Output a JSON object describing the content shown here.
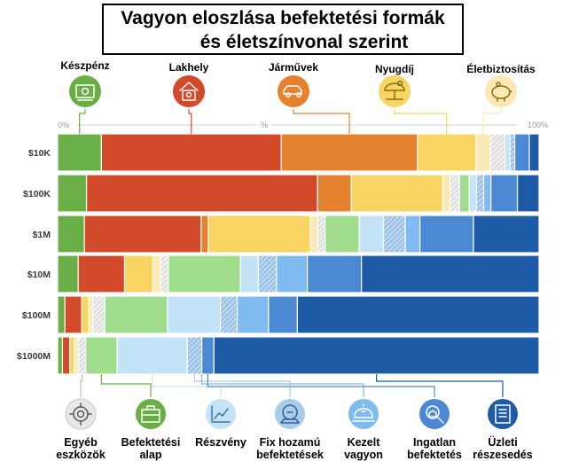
{
  "title": {
    "line1": "Vagyon eloszlása befektetési formák",
    "line2": "és életszínvonal szerint"
  },
  "axis": {
    "left": "0%",
    "mid": "%",
    "right": "100%"
  },
  "colors": {
    "cash": "#6aaf45",
    "housing": "#d24a2a",
    "vehicles": "#e6822f",
    "pension": "#f8d462",
    "life_insurance": "#fbe8b2",
    "other": "#e2e2e2",
    "funds": "#9fdc8c",
    "equities": "#c5e3f7",
    "fixed_income": "#a8cde8",
    "managed": "#7fbbf0",
    "real_estate": "#4c89d4",
    "business": "#1e5ba6"
  },
  "chart_data": {
    "type": "bar",
    "orientation": "horizontal",
    "stacked": "100%",
    "title": "Vagyon eloszlása befektetési formák és életszínvonal szerint",
    "xlim": [
      0,
      100
    ],
    "categories": [
      "$10K",
      "$100K",
      "$1M",
      "$10M",
      "$100M",
      "$1000M"
    ],
    "series": [
      {
        "name": "Készpénz",
        "icon": "cash-icon",
        "values": [
          9,
          6,
          5.5,
          4,
          1.5,
          1
        ]
      },
      {
        "name": "Lakhely",
        "icon": "house-icon",
        "values": [
          37,
          48,
          24,
          9,
          3.5,
          1.5
        ]
      },
      {
        "name": "Járművek",
        "icon": "car-icon",
        "values": [
          28,
          7,
          1.5,
          0,
          0,
          0
        ]
      },
      {
        "name": "Nyugdíj",
        "icon": "pension-icon",
        "values": [
          12,
          19,
          21,
          5.5,
          1.5,
          1
        ]
      },
      {
        "name": "Életbiztosítás",
        "icon": "piggy-bank-icon",
        "values": [
          3,
          1.5,
          1.5,
          1.5,
          0.8,
          0.8
        ]
      },
      {
        "name": "Egyéb eszközök",
        "icon": "gear-icon",
        "values": [
          3,
          2,
          1.5,
          1.5,
          2.5,
          1.5
        ]
      },
      {
        "name": "Befektetési alap",
        "icon": "briefcase-icon",
        "values": [
          0,
          2,
          7,
          14,
          13,
          6.5
        ]
      },
      {
        "name": "Részvény",
        "icon": "stock-chart-icon",
        "values": [
          1,
          1.5,
          5,
          3.5,
          11,
          14.5
        ]
      },
      {
        "name": "Fix hozamú befektetések",
        "icon": "fixed-income-icon",
        "values": [
          1,
          1.5,
          4.5,
          3.5,
          3.5,
          3
        ]
      },
      {
        "name": "Kezelt vagyon",
        "icon": "managed-wealth-icon",
        "values": [
          0,
          1.5,
          3,
          6,
          6.5,
          0
        ]
      },
      {
        "name": "Ingatlan befektetés",
        "icon": "magnifier-house-icon",
        "values": [
          3,
          5.5,
          11,
          10.5,
          6,
          2.5
        ]
      },
      {
        "name": "Üzleti részesedés",
        "icon": "business-share-icon",
        "values": [
          2,
          4.5,
          13.5,
          34.5,
          50.2,
          67.2
        ]
      }
    ],
    "top_legend": [
      "Készpénz",
      "Lakhely",
      "Járművek",
      "Nyugdíj",
      "Életbiztosítás"
    ],
    "bottom_legend": [
      "Egyéb eszközök",
      "Befektetési alap",
      "Részvény",
      "Fix hozamú befektetések",
      "Kezelt vagyon",
      "Ingatlan befektetés",
      "Üzleti részesedés"
    ],
    "legend_lines": {
      "cash": [
        "Kész",
        "pénz"
      ],
      "house": [
        "Lakhely"
      ],
      "car": [
        "Járművek"
      ],
      "pension": [
        "Nyugdíj"
      ],
      "life": [
        "Életbiztosítás"
      ],
      "other": [
        "Egyéb",
        "eszközök"
      ],
      "funds": [
        "Befektetési",
        "alap"
      ],
      "equity": [
        "Részvény"
      ],
      "fixed": [
        "Fix hozamú",
        "befektetések"
      ],
      "managed": [
        "Kezelt",
        "vagyon"
      ],
      "realestate": [
        "Ingatlan",
        "befektetés"
      ],
      "business": [
        "Üzleti",
        "részesedés"
      ]
    }
  }
}
